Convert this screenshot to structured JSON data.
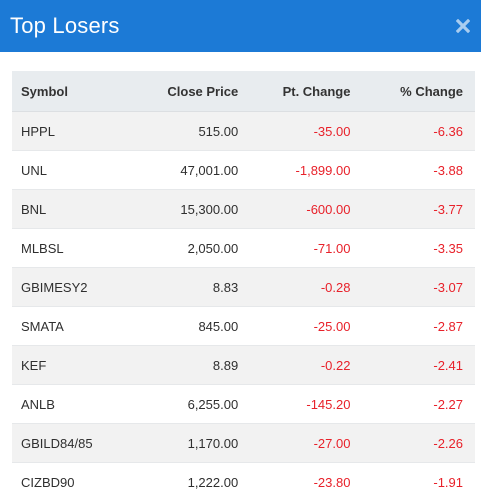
{
  "modal": {
    "title": "Top Losers",
    "close_icon": "close-icon"
  },
  "table": {
    "headers": [
      "Symbol",
      "Close Price",
      "Pt. Change",
      "% Change"
    ],
    "rows": [
      {
        "symbol": "HPPL",
        "close": "515.00",
        "pt": "-35.00",
        "pct": "-6.36"
      },
      {
        "symbol": "UNL",
        "close": "47,001.00",
        "pt": "-1,899.00",
        "pct": "-3.88"
      },
      {
        "symbol": "BNL",
        "close": "15,300.00",
        "pt": "-600.00",
        "pct": "-3.77"
      },
      {
        "symbol": "MLBSL",
        "close": "2,050.00",
        "pt": "-71.00",
        "pct": "-3.35"
      },
      {
        "symbol": "GBIMESY2",
        "close": "8.83",
        "pt": "-0.28",
        "pct": "-3.07"
      },
      {
        "symbol": "SMATA",
        "close": "845.00",
        "pt": "-25.00",
        "pct": "-2.87"
      },
      {
        "symbol": "KEF",
        "close": "8.89",
        "pt": "-0.22",
        "pct": "-2.41"
      },
      {
        "symbol": "ANLB",
        "close": "6,255.00",
        "pt": "-145.20",
        "pct": "-2.27"
      },
      {
        "symbol": "GBILD84/85",
        "close": "1,170.00",
        "pt": "-27.00",
        "pct": "-2.26"
      },
      {
        "symbol": "CIZBD90",
        "close": "1,222.00",
        "pt": "-23.80",
        "pct": "-1.91"
      }
    ]
  },
  "colors": {
    "header_bg": "#1c7ad6",
    "negative": "#e8212a",
    "table_head_bg": "#e8ecef",
    "stripe": "#f2f2f2"
  }
}
